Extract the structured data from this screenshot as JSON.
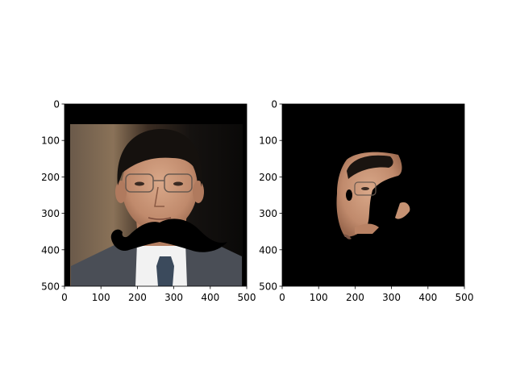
{
  "chart_data": [
    {
      "type": "image",
      "title": "",
      "xlabel": "",
      "ylabel": "",
      "xlim": [
        0,
        500
      ],
      "ylim": [
        500,
        0
      ],
      "xticks": [
        0,
        100,
        200,
        300,
        400,
        500
      ],
      "yticks": [
        0,
        100,
        200,
        300,
        400,
        500
      ],
      "content": "portrait photo with black mustache overlay"
    },
    {
      "type": "image",
      "title": "",
      "xlabel": "",
      "ylabel": "",
      "xlim": [
        0,
        500
      ],
      "ylim": [
        500,
        0
      ],
      "xticks": [
        0,
        100,
        200,
        300,
        400,
        500
      ],
      "yticks": [
        0,
        100,
        200,
        300,
        400,
        500
      ],
      "content": "masked face region on black background"
    }
  ],
  "colors": {
    "axis": "#000000",
    "background": "#ffffff",
    "mask": "#000000"
  }
}
